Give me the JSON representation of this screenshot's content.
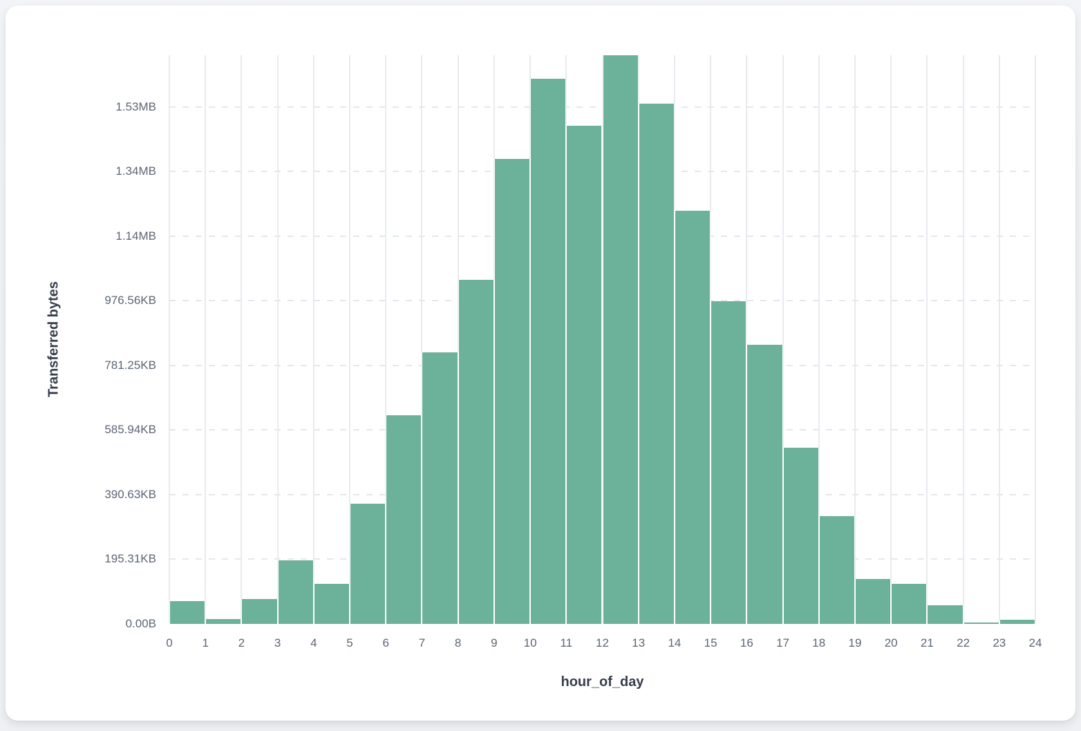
{
  "page": {
    "background_color": "#eff1f4",
    "card_color": "#ffffff"
  },
  "chart_data": {
    "type": "bar",
    "title": "",
    "xlabel": "hour_of_day",
    "ylabel": "Transferred bytes",
    "bar_color": "#6cb19a",
    "grid": true,
    "legend": "none",
    "xlim": [
      0,
      24
    ],
    "ylim": [
      0,
      1760000
    ],
    "bins": [
      0,
      1,
      2,
      3,
      4,
      5,
      6,
      7,
      8,
      9,
      10,
      11,
      12,
      13,
      14,
      15,
      16,
      17,
      18,
      19,
      20,
      21,
      22,
      23
    ],
    "values_bytes": [
      70000,
      15000,
      78000,
      196000,
      125000,
      372000,
      645000,
      841000,
      1066000,
      1440000,
      1688000,
      1542000,
      1760000,
      1611000,
      1278000,
      999000,
      865000,
      545000,
      334000,
      140000,
      125000,
      57000,
      4000,
      13000
    ],
    "x_tick_labels": [
      "0",
      "1",
      "2",
      "3",
      "4",
      "5",
      "6",
      "7",
      "8",
      "9",
      "10",
      "11",
      "12",
      "13",
      "14",
      "15",
      "16",
      "17",
      "18",
      "19",
      "20",
      "21",
      "22",
      "23",
      "24"
    ],
    "y_ticks": [
      {
        "value": 0,
        "label": "0.00B"
      },
      {
        "value": 200000,
        "label": "195.31KB"
      },
      {
        "value": 400000,
        "label": "390.63KB"
      },
      {
        "value": 600000,
        "label": "585.94KB"
      },
      {
        "value": 800000,
        "label": "781.25KB"
      },
      {
        "value": 1000000,
        "label": "976.56KB"
      },
      {
        "value": 1200000,
        "label": "1.14MB"
      },
      {
        "value": 1400000,
        "label": "1.34MB"
      },
      {
        "value": 1600000,
        "label": "1.53MB"
      }
    ]
  }
}
